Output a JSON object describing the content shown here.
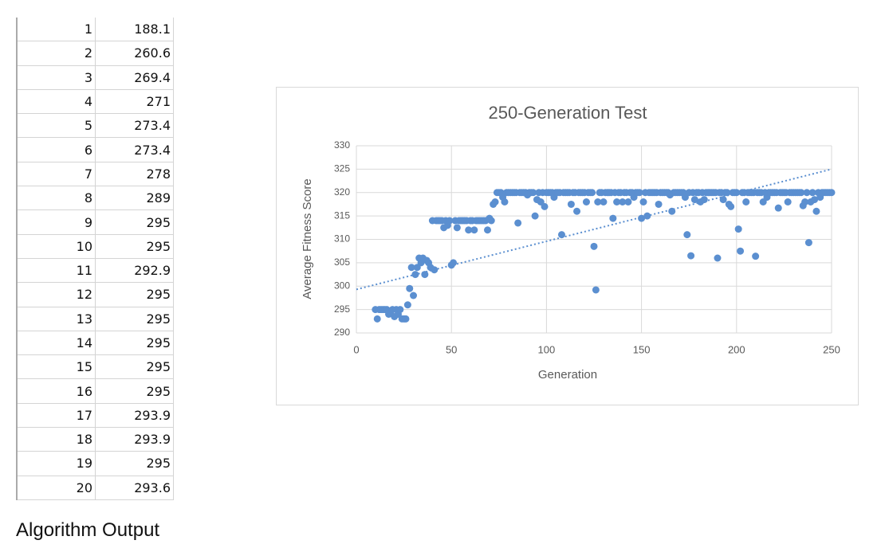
{
  "table": {
    "rows": [
      [
        1,
        188.1
      ],
      [
        2,
        260.6
      ],
      [
        3,
        269.4
      ],
      [
        4,
        271
      ],
      [
        5,
        273.4
      ],
      [
        6,
        273.4
      ],
      [
        7,
        278
      ],
      [
        8,
        289
      ],
      [
        9,
        295
      ],
      [
        10,
        295
      ],
      [
        11,
        292.9
      ],
      [
        12,
        295
      ],
      [
        13,
        295
      ],
      [
        14,
        295
      ],
      [
        15,
        295
      ],
      [
        16,
        295
      ],
      [
        17,
        293.9
      ],
      [
        18,
        293.9
      ],
      [
        19,
        295
      ],
      [
        20,
        293.6
      ]
    ]
  },
  "caption": "Algorithm Output",
  "chart_data": {
    "type": "scatter",
    "title": "250-Generation Test",
    "x_label": "Generation",
    "y_label": "Average Fitness Score",
    "color": "#5b8fd0",
    "grid": true,
    "xlim": [
      0,
      250
    ],
    "xticks": [
      0,
      50,
      100,
      150,
      200,
      250
    ],
    "ylim": [
      290,
      330
    ],
    "yticks": [
      290,
      295,
      300,
      305,
      310,
      315,
      320,
      325,
      330
    ],
    "x": [
      10,
      11,
      12,
      13,
      14,
      15,
      16,
      17,
      18,
      19,
      20,
      21,
      22,
      23,
      24,
      25,
      26,
      27,
      28,
      29,
      30,
      31,
      32,
      33,
      34,
      35,
      36,
      37,
      38,
      39,
      40,
      41,
      42,
      43,
      44,
      45,
      46,
      47,
      48,
      49,
      50,
      51,
      52,
      53,
      54,
      55,
      56,
      57,
      58,
      59,
      60,
      61,
      62,
      63,
      64,
      65,
      66,
      67,
      68,
      69,
      70,
      71,
      72,
      73,
      74,
      75,
      76,
      77,
      78,
      79,
      80,
      81,
      82,
      83,
      84,
      85,
      86,
      87,
      88,
      89,
      90,
      91,
      92,
      93,
      94,
      95,
      96,
      97,
      98,
      99,
      100,
      101,
      102,
      103,
      104,
      105,
      106,
      107,
      108,
      109,
      110,
      111,
      112,
      113,
      114,
      115,
      116,
      117,
      118,
      119,
      120,
      121,
      122,
      123,
      124,
      125,
      126,
      127,
      128,
      129,
      130,
      131,
      132,
      133,
      134,
      135,
      136,
      137,
      138,
      139,
      140,
      141,
      142,
      143,
      144,
      145,
      146,
      147,
      148,
      149,
      150,
      151,
      152,
      153,
      154,
      155,
      156,
      157,
      158,
      159,
      160,
      161,
      162,
      163,
      164,
      165,
      166,
      167,
      168,
      169,
      170,
      171,
      172,
      173,
      174,
      175,
      176,
      177,
      178,
      179,
      180,
      181,
      182,
      183,
      184,
      185,
      186,
      187,
      188,
      189,
      190,
      191,
      192,
      193,
      194,
      195,
      196,
      197,
      198,
      199,
      200,
      201,
      202,
      203,
      204,
      205,
      206,
      207,
      208,
      209,
      210,
      211,
      212,
      213,
      214,
      215,
      216,
      217,
      218,
      219,
      220,
      221,
      222,
      223,
      224,
      225,
      226,
      227,
      228,
      229,
      230,
      231,
      232,
      233,
      234,
      235,
      236,
      237,
      238,
      239,
      240,
      241,
      242,
      243,
      244,
      245,
      246,
      247,
      248,
      249,
      250
    ],
    "values": [
      295,
      293,
      295,
      295,
      295,
      295,
      295,
      294,
      294.5,
      295,
      293.5,
      295,
      294,
      295,
      293,
      293,
      293,
      296,
      299.5,
      304,
      298,
      302.5,
      304,
      306,
      305,
      306,
      302.5,
      305.5,
      305,
      304,
      314,
      303.5,
      314,
      314,
      314,
      314,
      312.5,
      314,
      313,
      314,
      304.5,
      305,
      314,
      312.5,
      314,
      314,
      314,
      314,
      314,
      312,
      314,
      314,
      312,
      314,
      314,
      314,
      314,
      314,
      314,
      312,
      314.5,
      314,
      317.5,
      318,
      320,
      320,
      320,
      319,
      318,
      320,
      320,
      320,
      320,
      320,
      320,
      313.5,
      320,
      320,
      320,
      320,
      319.5,
      320,
      320,
      320,
      315,
      318.5,
      320,
      318,
      320,
      317,
      320,
      320,
      320,
      320,
      319,
      320,
      320,
      320,
      311,
      320,
      320,
      320,
      320,
      317.5,
      320,
      320,
      316,
      320,
      320,
      320,
      320,
      318,
      320,
      320,
      320,
      308.5,
      299.2,
      318,
      320,
      320,
      318,
      320,
      320,
      320,
      320,
      314.5,
      320,
      318,
      320,
      320,
      318,
      320,
      320,
      318,
      320,
      320,
      319,
      320,
      320,
      320,
      314.5,
      318,
      320,
      315,
      320,
      320,
      320,
      320,
      320,
      317.5,
      320,
      320,
      320,
      320,
      320,
      319.5,
      316,
      320,
      320,
      320,
      320,
      320,
      320,
      319,
      311,
      320,
      306.5,
      320,
      318.5,
      320,
      320,
      318,
      320,
      318.5,
      320,
      320,
      320,
      320,
      320,
      320,
      306,
      320,
      320,
      318.5,
      320,
      320,
      317.5,
      317,
      320,
      320,
      320,
      312.2,
      307.5,
      320,
      320,
      318,
      320,
      320,
      320,
      320,
      306.4,
      320,
      320,
      320,
      318,
      320,
      319,
      320,
      320,
      320,
      320,
      320,
      316.7,
      320,
      320,
      320,
      320,
      318,
      320,
      320,
      320,
      320,
      320,
      320,
      320,
      317.2,
      318,
      320,
      309.3,
      318,
      320,
      318.5,
      316,
      320,
      319,
      320,
      320,
      320,
      320,
      320,
      320
    ],
    "trendline": {
      "x": [
        0,
        250
      ],
      "y": [
        299.3,
        325
      ]
    }
  }
}
